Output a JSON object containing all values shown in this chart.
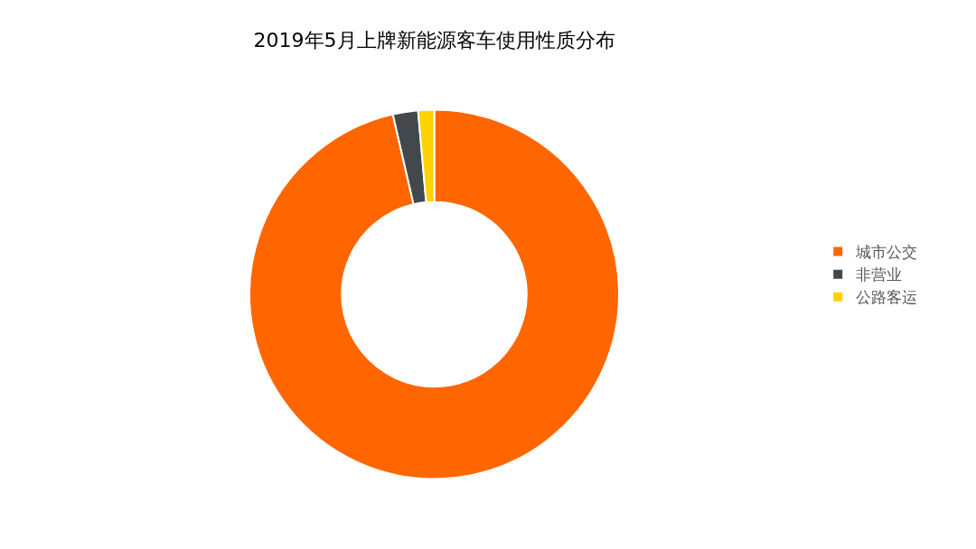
{
  "chart_data": {
    "type": "donut",
    "title": "2019年5月上牌新能源客车使用性质分布",
    "categories": [
      "城市公交",
      "非营业",
      "公路客运"
    ],
    "values": [
      96.4,
      2.2,
      1.4
    ],
    "colors": [
      "#ff6600",
      "#43484c",
      "#ffd200"
    ],
    "legend": "right"
  }
}
